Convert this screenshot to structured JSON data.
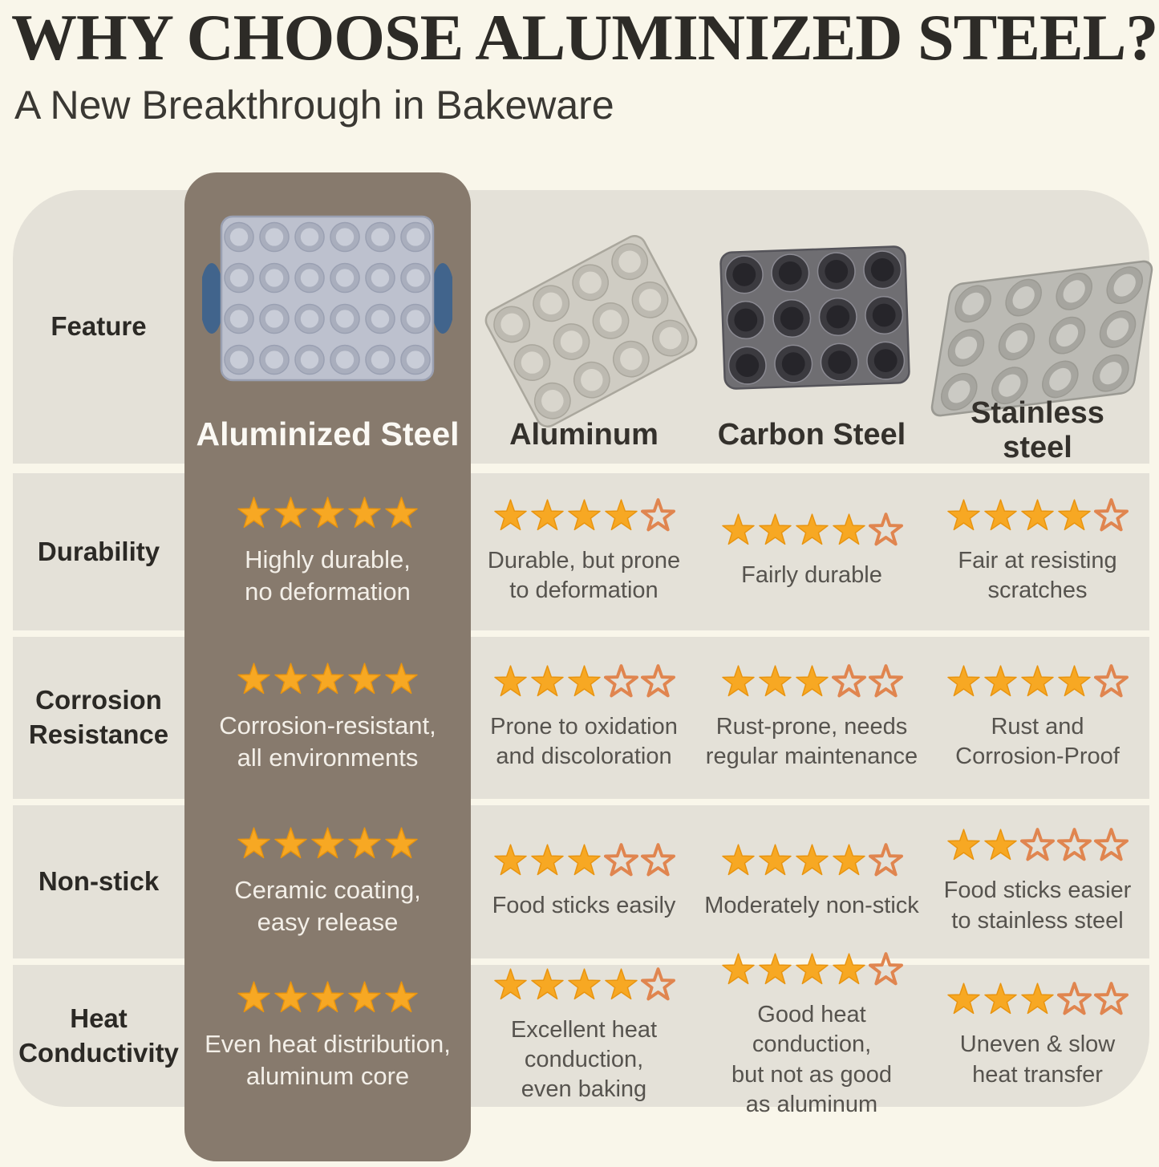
{
  "title": "WHY CHOOSE ALUMINIZED STEEL?",
  "subtitle": "A New Breakthrough in Bakeware",
  "feature_header": "Feature",
  "chart_data": {
    "type": "table",
    "rating_scale_max": 5,
    "columns": [
      {
        "label": "Aluminized Steel",
        "highlighted": true,
        "image": "aluminized-steel-24-cup-muffin-pan"
      },
      {
        "label": "Aluminum",
        "highlighted": false,
        "image": "aluminum-12-cup-muffin-pan"
      },
      {
        "label": "Carbon Steel",
        "highlighted": false,
        "image": "carbon-steel-12-cup-muffin-pan"
      },
      {
        "label": "Stainless steel",
        "highlighted": false,
        "image": "stainless-steel-12-cup-muffin-pan"
      }
    ],
    "rows": [
      {
        "feature": "Durability",
        "cells": [
          {
            "rating": 5,
            "note": "Highly durable,\nno deformation"
          },
          {
            "rating": 4,
            "note": "Durable, but prone\nto deformation"
          },
          {
            "rating": 4,
            "note": "Fairly durable"
          },
          {
            "rating": 4,
            "note": "Fair at resisting\nscratches"
          }
        ]
      },
      {
        "feature": "Corrosion Resistance",
        "cells": [
          {
            "rating": 5,
            "note": "Corrosion-resistant,\nall environments"
          },
          {
            "rating": 3,
            "note": "Prone to oxidation\nand discoloration"
          },
          {
            "rating": 3,
            "note": "Rust-prone, needs\nregular maintenance"
          },
          {
            "rating": 4,
            "note": "Rust and\nCorrosion-Proof"
          }
        ]
      },
      {
        "feature": "Non-stick",
        "cells": [
          {
            "rating": 5,
            "note": "Ceramic coating,\neasy release"
          },
          {
            "rating": 3,
            "note": "Food sticks easily"
          },
          {
            "rating": 4,
            "note": "Moderately non-stick"
          },
          {
            "rating": 2,
            "note": "Food sticks easier\nto stainless steel"
          }
        ]
      },
      {
        "feature": "Heat Conductivity",
        "cells": [
          {
            "rating": 5,
            "note": "Even heat distribution,\naluminum core"
          },
          {
            "rating": 4,
            "note": "Excellent heat\nconduction,\neven baking"
          },
          {
            "rating": 4,
            "note": "Good heat conduction,\nbut not as good\nas aluminum"
          },
          {
            "rating": 3,
            "note": "Uneven & slow\nheat transfer"
          }
        ]
      }
    ]
  },
  "colors": {
    "background": "#f9f6ea",
    "band": "#e4e1d8",
    "highlight_column": "#877a6d",
    "star_filled": "#F7A823",
    "star_filled_stroke": "#E8940F",
    "star_outline": "#E0854F",
    "pan_handle_blue": "#41648c",
    "text_dark": "#2d2b27",
    "text_gray": "#56534e",
    "text_light": "#f3efe8"
  }
}
